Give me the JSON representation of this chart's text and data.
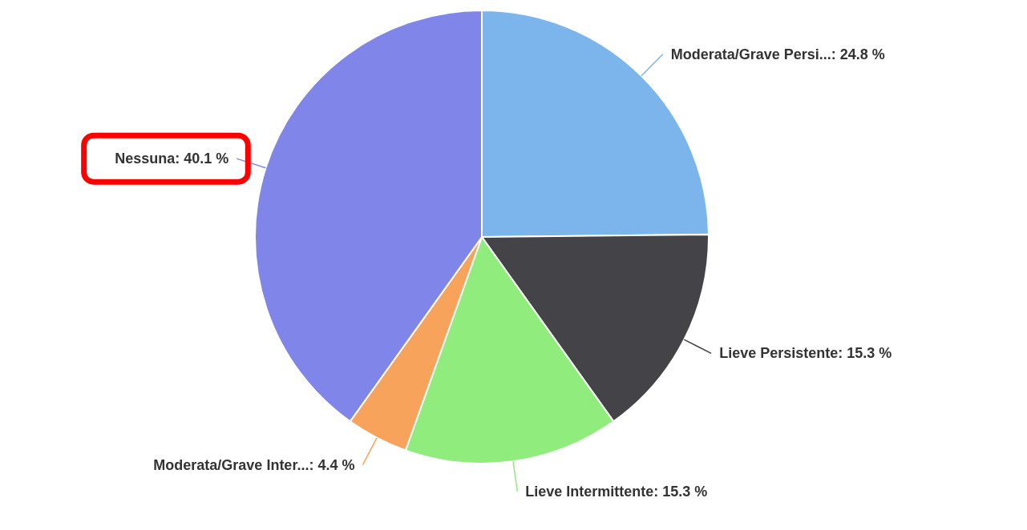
{
  "chart_data": {
    "type": "pie",
    "categories": [
      "Moderata/Grave Persi...",
      "Lieve Persistente",
      "Lieve Intermittente",
      "Moderata/Grave Inter...",
      "Nessuna"
    ],
    "values": [
      24.8,
      15.3,
      15.3,
      4.4,
      40.1
    ],
    "colors": [
      "#7cb5ec",
      "#434348",
      "#90ed7d",
      "#f7a35c",
      "#8085e9"
    ],
    "value_labels": [
      ": 24.8 %",
      ": 15.3 %",
      ": 15.3 %",
      ": 4.4 %",
      ": 40.1 %"
    ]
  }
}
